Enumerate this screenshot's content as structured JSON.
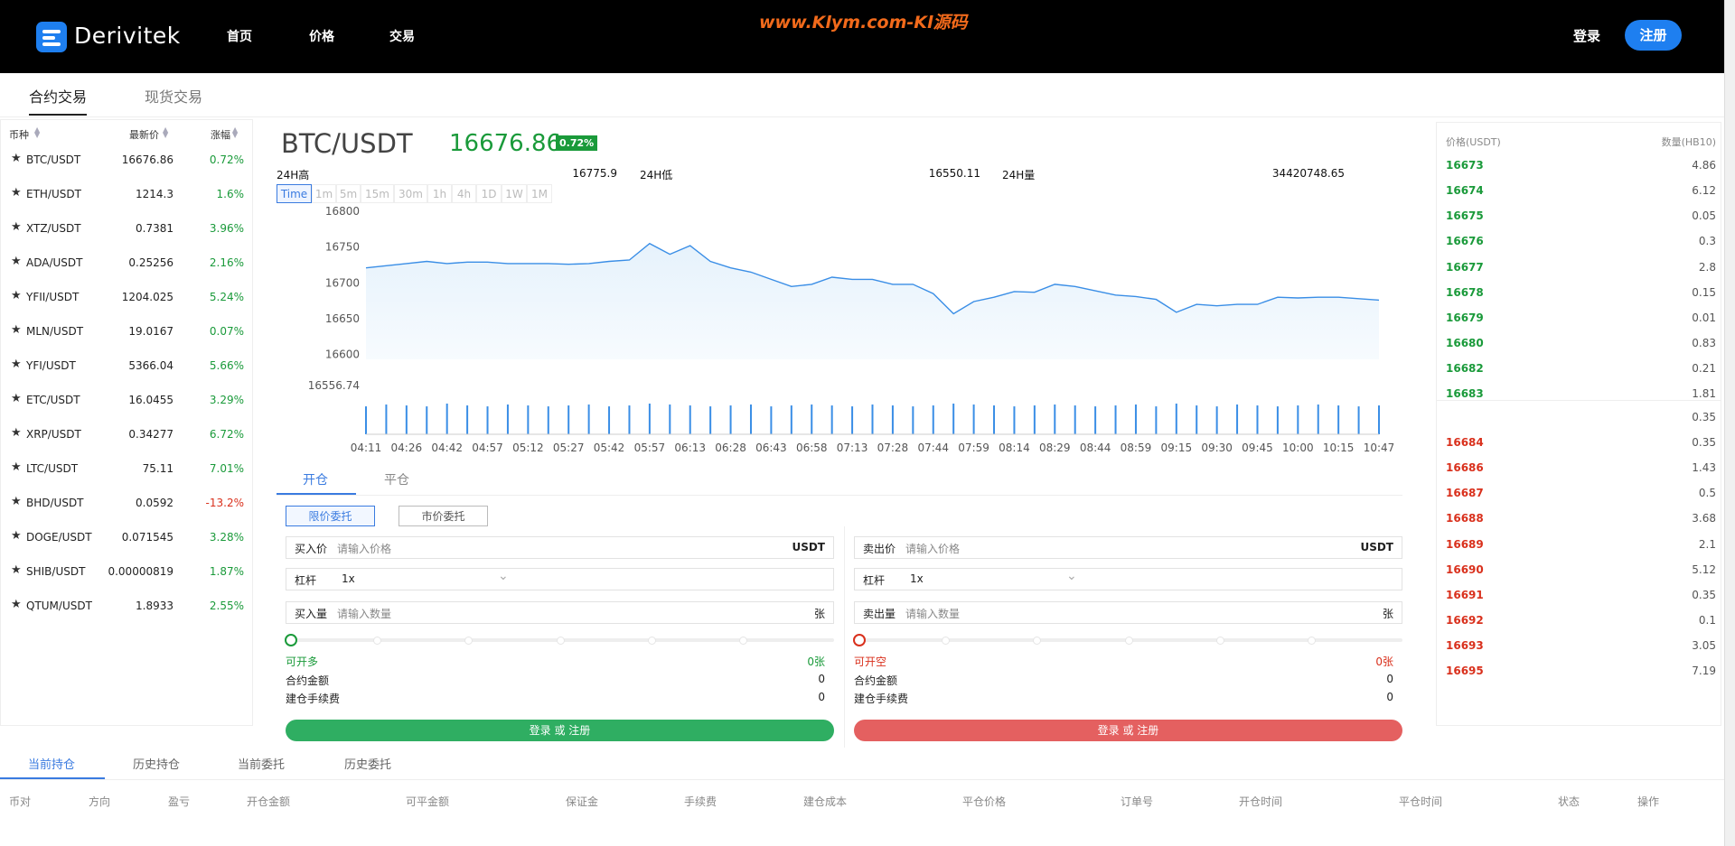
{
  "header": {
    "brand": "Derivitek",
    "nav": [
      "首页",
      "价格",
      "交易"
    ],
    "watermark": "www.Klym.com-Kl源码",
    "login": "登录",
    "register": "注册"
  },
  "tabs": [
    "合约交易",
    "现货交易"
  ],
  "market": {
    "columns": [
      "币种",
      "最新价",
      "涨幅"
    ],
    "rows": [
      [
        "BTC/USDT",
        "16676.86",
        "0.72%"
      ],
      [
        "ETH/USDT",
        "1214.3",
        "1.6%"
      ],
      [
        "XTZ/USDT",
        "0.7381",
        "3.96%"
      ],
      [
        "ADA/USDT",
        "0.25256",
        "2.16%"
      ],
      [
        "YFII/USDT",
        "1204.025",
        "5.24%"
      ],
      [
        "MLN/USDT",
        "19.0167",
        "0.07%"
      ],
      [
        "YFI/USDT",
        "5366.04",
        "5.66%"
      ],
      [
        "ETC/USDT",
        "16.0455",
        "3.29%"
      ],
      [
        "XRP/USDT",
        "0.34277",
        "6.72%"
      ],
      [
        "LTC/USDT",
        "75.11",
        "7.01%"
      ],
      [
        "BHD/USDT",
        "0.0592",
        "-13.2%"
      ],
      [
        "DOGE/USDT",
        "0.071545",
        "3.28%"
      ],
      [
        "SHIB/USDT",
        "0.00000819",
        "1.87%"
      ],
      [
        "QTUM/USDT",
        "1.8933",
        "2.55%"
      ]
    ]
  },
  "ticker": {
    "pair": "BTC/USDT",
    "price": "16676.86",
    "change": "0.72%",
    "high_label": "24H高",
    "high": "16775.9",
    "low_label": "24H低",
    "low": "16550.11",
    "vol_label": "24H量",
    "vol": "34420748.65"
  },
  "intervals": [
    "Time",
    "1m",
    "5m",
    "15m",
    "30m",
    "1h",
    "4h",
    "1D",
    "1W",
    "1M"
  ],
  "chart_data": {
    "type": "line",
    "color": "#3a8ee6",
    "categories": [
      "04:11",
      null,
      "04:26",
      null,
      "04:42",
      null,
      "04:57",
      null,
      "05:12",
      null,
      "05:27",
      null,
      "05:42",
      null,
      "05:57",
      null,
      "06:13",
      null,
      "06:28",
      null,
      "06:43",
      null,
      "06:58",
      null,
      "07:13",
      null,
      "07:28",
      null,
      "07:44",
      null,
      "07:59",
      null,
      "08:14",
      null,
      "08:29",
      null,
      "08:44",
      null,
      "08:59",
      null,
      "09:15",
      null,
      "09:30",
      null,
      "09:45",
      null,
      "10:00",
      null,
      "10:15",
      null,
      "10:47"
    ],
    "values": [
      16721,
      16724,
      16727,
      16730,
      16727,
      16729,
      16729,
      16727,
      16727,
      16727,
      16726,
      16727,
      16730,
      16732,
      16755,
      16740,
      16752,
      16730,
      16721,
      16715,
      16705,
      16695,
      16698,
      16708,
      16705,
      16705,
      16698,
      16698,
      16685,
      16657,
      16674,
      16680,
      16688,
      16687,
      16698,
      16695,
      16689,
      16683,
      16681,
      16677,
      16659,
      16670,
      16668,
      16670,
      16670,
      16680,
      16679,
      16680,
      16680,
      16678,
      16676
    ],
    "volumes": [
      30,
      32,
      31,
      30,
      33,
      31,
      30,
      32,
      31,
      30,
      31,
      32,
      30,
      31,
      33,
      32,
      31,
      30,
      31,
      32,
      30,
      31,
      32,
      31,
      30,
      32,
      31,
      30,
      31,
      33,
      32,
      31,
      30,
      31,
      32,
      31,
      30,
      31,
      32,
      30,
      33,
      31,
      30,
      32,
      31,
      30,
      31,
      32,
      31,
      30,
      31
    ],
    "ylim": [
      16556.74,
      16800
    ],
    "yticks": [
      16556.74,
      16600,
      16650,
      16700,
      16750,
      16800
    ]
  },
  "trade": {
    "tabs": [
      "开仓",
      "平仓"
    ],
    "order_types": [
      "限价委托",
      "市价委托"
    ],
    "buy": {
      "price_label": "买入价",
      "price_placeholder": "请输入价格",
      "unit": "USDT",
      "leverage_label": "杠杆",
      "leverage": "1x",
      "qty_label": "买入量",
      "qty_placeholder": "请输入数量",
      "qty_unit": "张",
      "avail_label": "可开多",
      "avail": "0张",
      "amount_label": "合约金额",
      "amount": "0",
      "fee_label": "建仓手续费",
      "fee": "0",
      "button": "登录 或 注册"
    },
    "sell": {
      "price_label": "卖出价",
      "price_placeholder": "请输入价格",
      "unit": "USDT",
      "leverage_label": "杠杆",
      "leverage": "1x",
      "qty_label": "卖出量",
      "qty_placeholder": "请输入数量",
      "qty_unit": "张",
      "avail_label": "可开空",
      "avail": "0张",
      "amount_label": "合约金额",
      "amount": "0",
      "fee_label": "建仓手续费",
      "fee": "0",
      "button": "登录 或 注册"
    }
  },
  "orderbook": {
    "columns": [
      "价格(USDT)",
      "数量(HB10)"
    ],
    "upper": [
      [
        "16673",
        "4.86"
      ],
      [
        "16674",
        "6.12"
      ],
      [
        "16675",
        "0.05"
      ],
      [
        "16676",
        "0.3"
      ],
      [
        "16677",
        "2.8"
      ],
      [
        "16678",
        "0.15"
      ],
      [
        "16679",
        "0.01"
      ],
      [
        "16680",
        "0.83"
      ],
      [
        "16682",
        "0.21"
      ],
      [
        "16683",
        "1.81"
      ]
    ],
    "mid": "0.35",
    "lower": [
      [
        "16684",
        "0.35"
      ],
      [
        "16686",
        "1.43"
      ],
      [
        "16687",
        "0.5"
      ],
      [
        "16688",
        "3.68"
      ],
      [
        "16689",
        "2.1"
      ],
      [
        "16690",
        "5.12"
      ],
      [
        "16691",
        "0.35"
      ],
      [
        "16692",
        "0.1"
      ],
      [
        "16693",
        "3.05"
      ],
      [
        "16695",
        "7.19"
      ]
    ]
  },
  "positions": {
    "tabs": [
      "当前持仓",
      "历史持仓",
      "当前委托",
      "历史委托"
    ],
    "columns": [
      "币对",
      "方向",
      "盈亏",
      "开仓金额",
      "可平金额",
      "保证金",
      "手续费",
      "建仓成本",
      "平仓价格",
      "订单号",
      "开仓时间",
      "平仓时间",
      "状态",
      "操作"
    ]
  }
}
